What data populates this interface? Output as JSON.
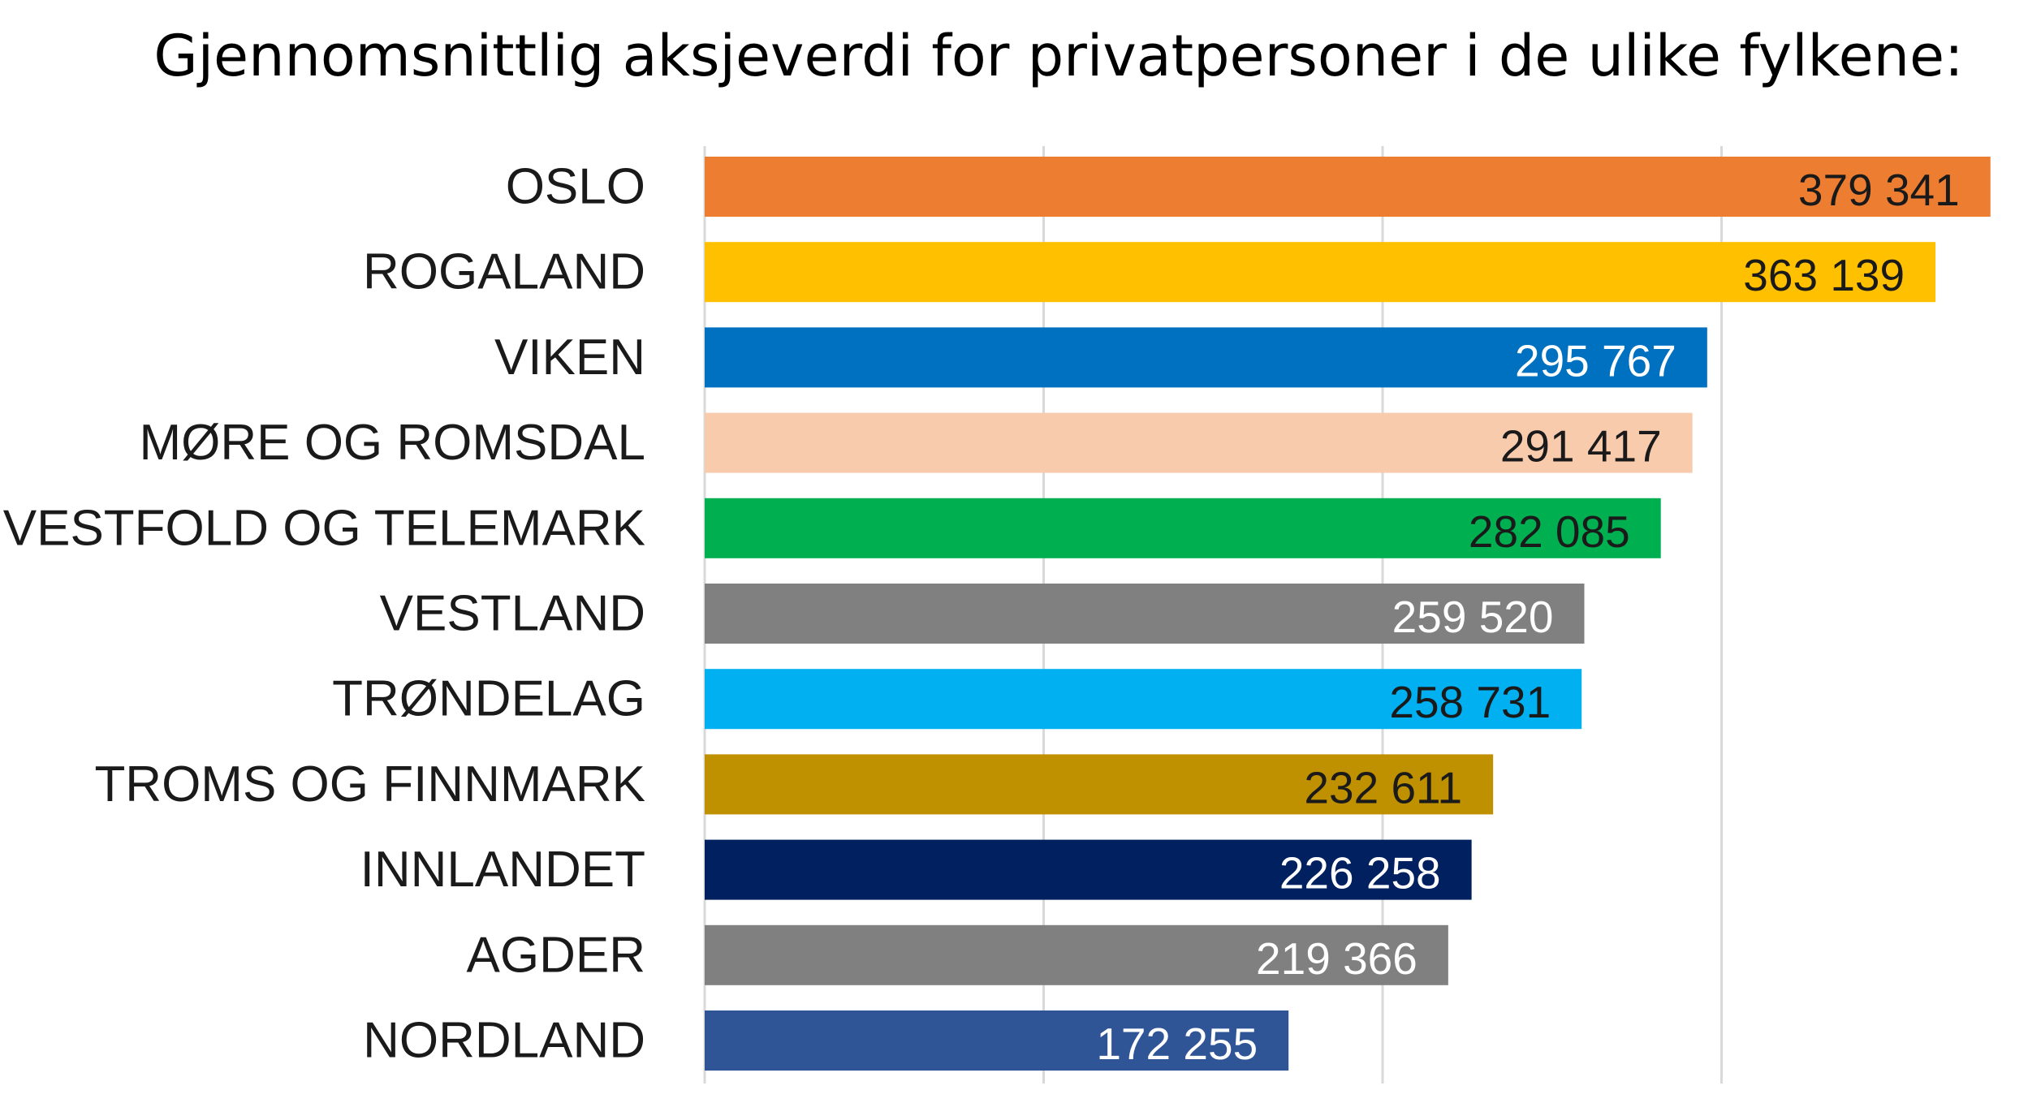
{
  "chart_data": {
    "type": "bar",
    "orientation": "horizontal",
    "title": "Gjennomsnittlig aksjeverdi for privatpersoner i de ulike fylkene:",
    "xlabel": "",
    "ylabel": "",
    "xlim": [
      0,
      400000
    ],
    "grid": true,
    "legend": "none",
    "categories": [
      "OSLO",
      "ROGALAND",
      "VIKEN",
      "MØRE OG ROMSDAL",
      "VESTFOLD OG TELEMARK",
      "VESTLAND",
      "TRØNDELAG",
      "TROMS OG FINNMARK",
      "INNLANDET",
      "AGDER",
      "NORDLAND"
    ],
    "values": [
      379341,
      363139,
      295767,
      291417,
      282085,
      259520,
      258731,
      232611,
      226258,
      219366,
      172255
    ],
    "value_labels": [
      "379 341",
      "363 139",
      "295 767",
      "291 417",
      "282 085",
      "259 520",
      "258 731",
      "232 611",
      "226 258",
      "219 366",
      "172 255"
    ],
    "bar_colors": [
      "#ED7D31",
      "#FFC000",
      "#0070C0",
      "#F8CBAD",
      "#00B050",
      "#808080",
      "#00B0F0",
      "#BF9000",
      "#002060",
      "#808080",
      "#2F5597"
    ],
    "value_label_colors": [
      "#1a1a1a",
      "#1a1a1a",
      "#ffffff",
      "#1a1a1a",
      "#1a1a1a",
      "#ffffff",
      "#1a1a1a",
      "#1a1a1a",
      "#ffffff",
      "#ffffff",
      "#ffffff"
    ],
    "gridline_color": "#d9d9d9"
  }
}
